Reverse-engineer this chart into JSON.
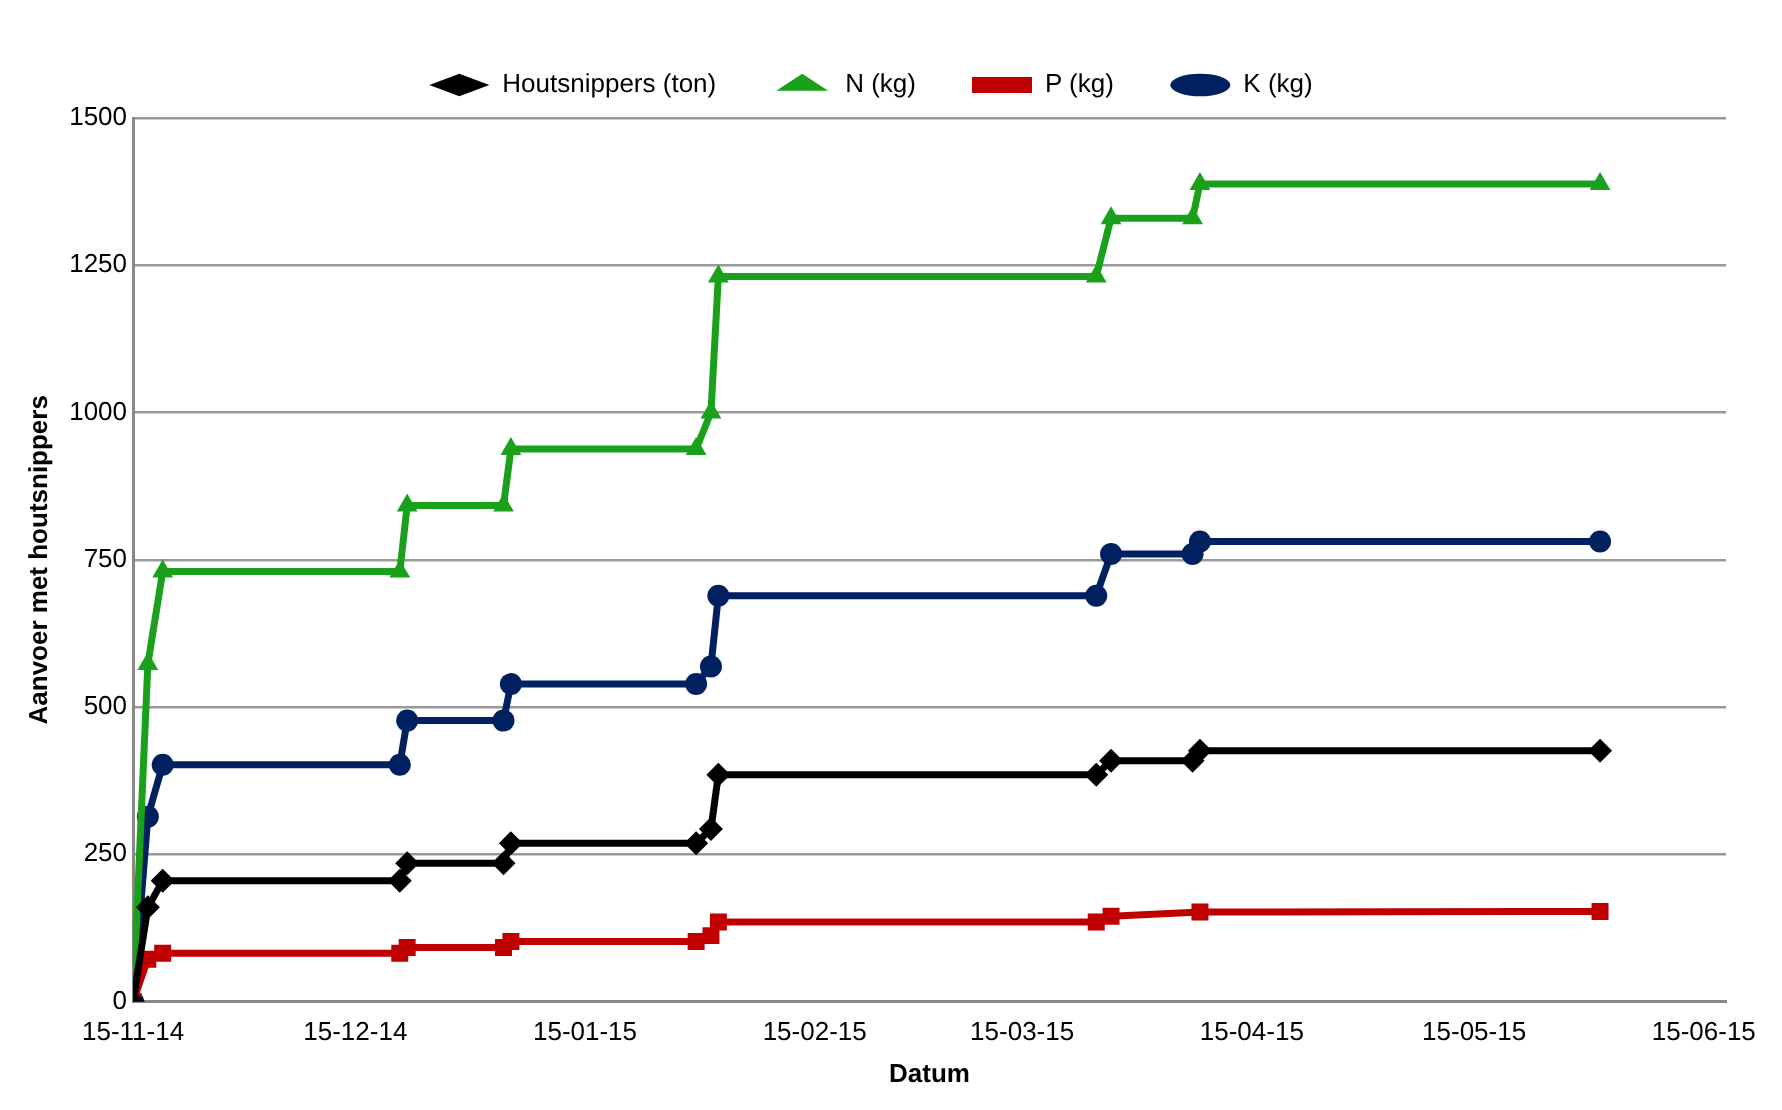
{
  "chart_data": {
    "type": "line",
    "xlabel": "Datum",
    "ylabel": "Aanvoer met houtsnippers",
    "x": [
      "2014-11-15",
      "2014-11-17",
      "2014-11-19",
      "2014-12-21",
      "2014-12-22",
      "2015-01-04",
      "2015-01-05",
      "2015-01-30",
      "2015-02-01",
      "2015-02-02",
      "2015-03-25",
      "2015-03-27",
      "2015-04-07",
      "2015-04-08",
      "2015-06-01"
    ],
    "series": [
      {
        "name": "Houtsnippers (ton)",
        "color": "#000000",
        "marker": "diamond",
        "values": [
          0,
          160,
          205,
          205,
          235,
          235,
          269,
          269,
          293,
          385,
          385,
          409,
          409,
          426,
          426
        ]
      },
      {
        "name": "N (kg)",
        "color": "#1aa01a",
        "marker": "triangle",
        "values": [
          0,
          573,
          730,
          730,
          842,
          842,
          938,
          938,
          1000,
          1231,
          1231,
          1330,
          1330,
          1388,
          1388
        ]
      },
      {
        "name": "P (kg)",
        "color": "#c00000",
        "marker": "square",
        "values": [
          0,
          72,
          82,
          82,
          92,
          92,
          102,
          102,
          112,
          135,
          135,
          145,
          null,
          152,
          153
        ]
      },
      {
        "name": "K (kg)",
        "color": "#002060",
        "marker": "circle",
        "values": [
          0,
          314,
          402,
          402,
          477,
          477,
          539,
          539,
          569,
          689,
          689,
          760,
          760,
          781,
          781
        ]
      }
    ],
    "xlim": [
      "2014-11-15",
      "2015-06-18"
    ],
    "xticks": [
      {
        "value": "2014-11-15",
        "label": "15-11-14"
      },
      {
        "value": "2014-12-15",
        "label": "15-12-14"
      },
      {
        "value": "2015-01-15",
        "label": "15-01-15"
      },
      {
        "value": "2015-02-15",
        "label": "15-02-15"
      },
      {
        "value": "2015-03-15",
        "label": "15-03-15"
      },
      {
        "value": "2015-04-15",
        "label": "15-04-15"
      },
      {
        "value": "2015-05-15",
        "label": "15-05-15"
      },
      {
        "value": "2015-06-15",
        "label": "15-06-15"
      }
    ],
    "ylim": [
      0,
      1500
    ],
    "yticks": [
      0,
      250,
      500,
      750,
      1000,
      1250,
      1500
    ],
    "grid": "y",
    "legend": "top",
    "line_style": "solid"
  }
}
